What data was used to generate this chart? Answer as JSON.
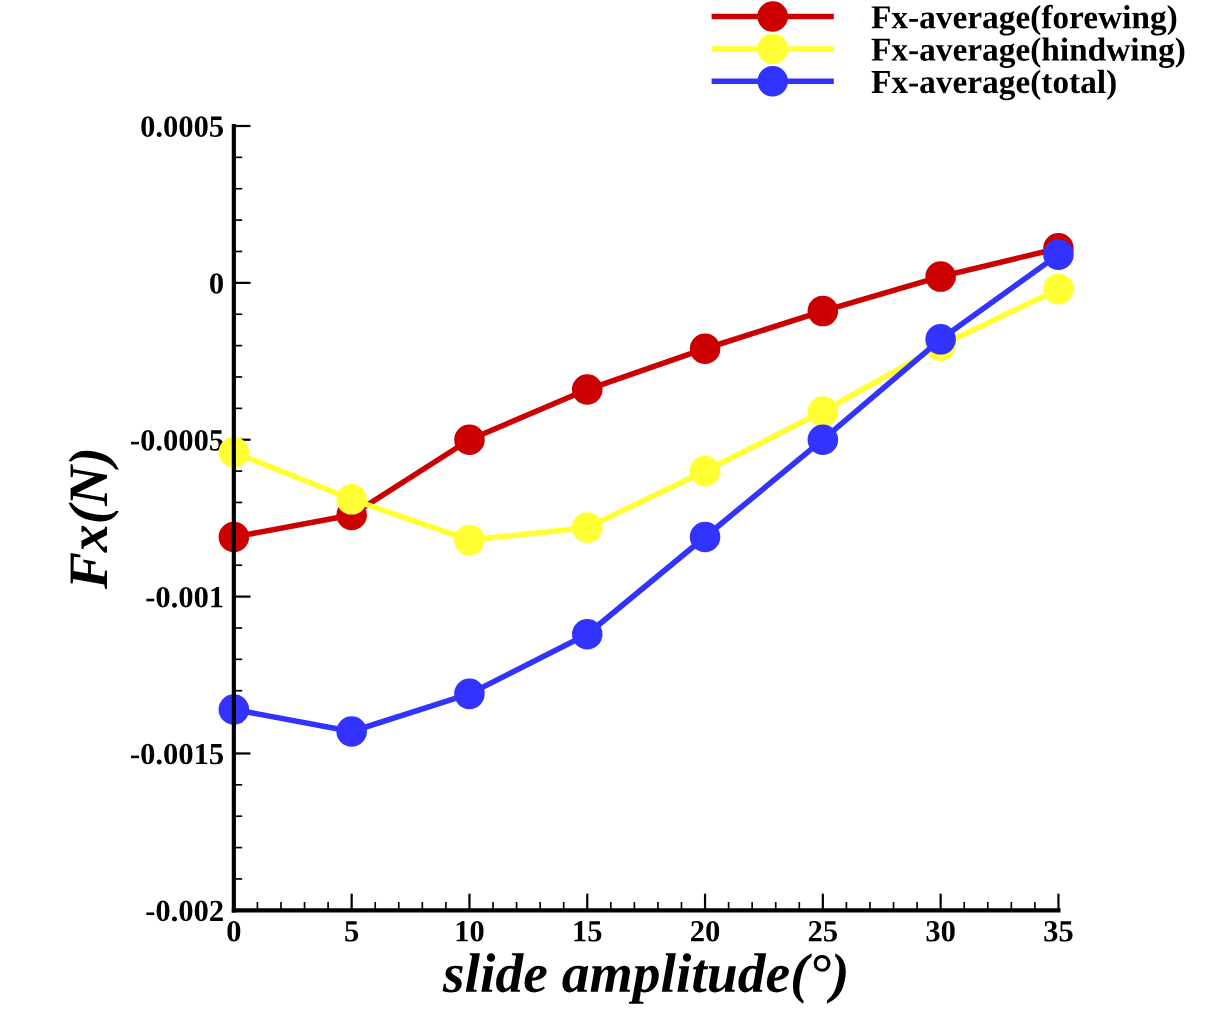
{
  "chart_data": {
    "type": "line",
    "xlabel": "slide amplitude(°)",
    "ylabel": "Fx(N)",
    "x": [
      0,
      5,
      10,
      15,
      20,
      25,
      30,
      35
    ],
    "series": [
      {
        "name": "Fx-average(forewing)",
        "color": "#cc0000",
        "values": [
          -0.00081,
          -0.00074,
          -0.0005,
          -0.00034,
          -0.00021,
          -9e-05,
          2e-05,
          0.00011
        ]
      },
      {
        "name": "Fx-average(hindwing)",
        "color": "#ffff33",
        "values": [
          -0.00054,
          -0.00069,
          -0.00082,
          -0.00078,
          -0.0006,
          -0.00041,
          -0.0002,
          -2e-05
        ]
      },
      {
        "name": "Fx-average(total)",
        "color": "#3333ff",
        "values": [
          -0.00136,
          -0.00143,
          -0.00131,
          -0.00112,
          -0.00081,
          -0.0005,
          -0.00018,
          9e-05
        ]
      }
    ],
    "xlim": [
      0,
      35
    ],
    "xticks": [
      0,
      5,
      10,
      15,
      20,
      25,
      30,
      35
    ],
    "ylim": [
      -0.002,
      0.0005
    ],
    "yticks": [
      -0.002,
      -0.0015,
      -0.001,
      -0.0005,
      0,
      0.0005
    ],
    "grid": false,
    "legend": "top right",
    "marker": "circle",
    "line_style": "solid"
  }
}
